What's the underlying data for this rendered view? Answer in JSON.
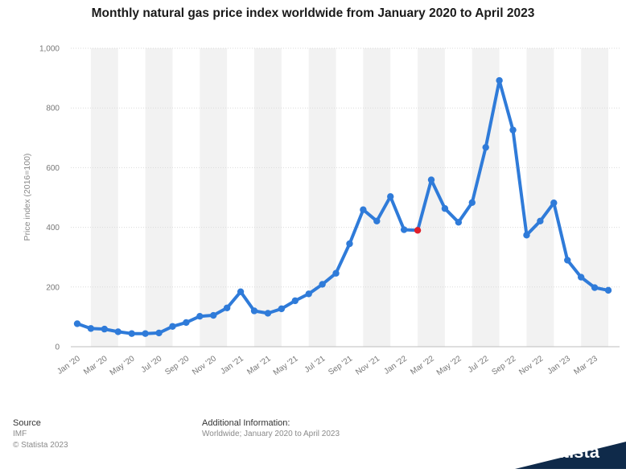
{
  "title": "Monthly natural gas price index worldwide from January 2020 to April 2023",
  "footer": {
    "source_heading": "Source",
    "source_value": "IMF",
    "copyright": "© Statista 2023",
    "additional_heading": "Additional Information:",
    "additional_value": "Worldwide; January 2020 to April 2023"
  },
  "brand": {
    "logo_text": "statista",
    "logo_color": "#0f2a4a"
  },
  "colors": {
    "line": "#2f7bd9",
    "highlight": "#e0202a",
    "band": "#f2f2f2"
  },
  "chart_data": {
    "type": "line",
    "title": "Monthly natural gas price index worldwide from January 2020 to April 2023",
    "xlabel": "",
    "ylabel": "Price index (2016=100)",
    "ylim": [
      0,
      1000
    ],
    "yticks": [
      0,
      200,
      400,
      600,
      800,
      1000
    ],
    "ytick_labels": [
      "0",
      "200",
      "400",
      "600",
      "800",
      "1,000"
    ],
    "grid": true,
    "categories": [
      "Jan '20",
      "Feb '20",
      "Mar '20",
      "Apr '20",
      "May '20",
      "Jun '20",
      "Jul '20",
      "Aug '20",
      "Sep '20",
      "Oct '20",
      "Nov '20",
      "Dec '20",
      "Jan '21",
      "Feb '21",
      "Mar '21",
      "Apr '21",
      "May '21",
      "Jun '21",
      "Jul '21",
      "Aug '21",
      "Sep '21",
      "Oct '21",
      "Nov '21",
      "Dec '21",
      "Jan '22",
      "Feb '22",
      "Mar '22",
      "Apr '22",
      "May '22",
      "Jun '22",
      "Jul '22",
      "Aug '22",
      "Sep '22",
      "Oct '22",
      "Nov '22",
      "Dec '22",
      "Jan '23",
      "Feb '23",
      "Mar '23",
      "Apr '23"
    ],
    "visible_xtick_labels": [
      "Jan '20",
      "Mar '20",
      "May '20",
      "Jul '20",
      "Sep '20",
      "Nov '20",
      "Jan '21",
      "Mar '21",
      "May '21",
      "Jul '21",
      "Sep '21",
      "Nov '21",
      "Jan '22",
      "Mar '22",
      "May '22",
      "Jul '22",
      "Sep '22",
      "Nov '22",
      "Jan '23",
      "Mar '23"
    ],
    "series": [
      {
        "values": [
          77,
          61,
          59,
          50,
          44,
          44,
          46,
          68,
          81,
          102,
          105,
          130,
          184,
          120,
          112,
          127,
          154,
          177,
          209,
          246,
          345,
          459,
          421,
          503,
          392,
          390,
          559,
          463,
          417,
          483,
          668,
          892,
          726,
          374,
          421,
          482,
          290,
          233,
          198,
          189
        ],
        "highlight_index": 25
      }
    ]
  }
}
